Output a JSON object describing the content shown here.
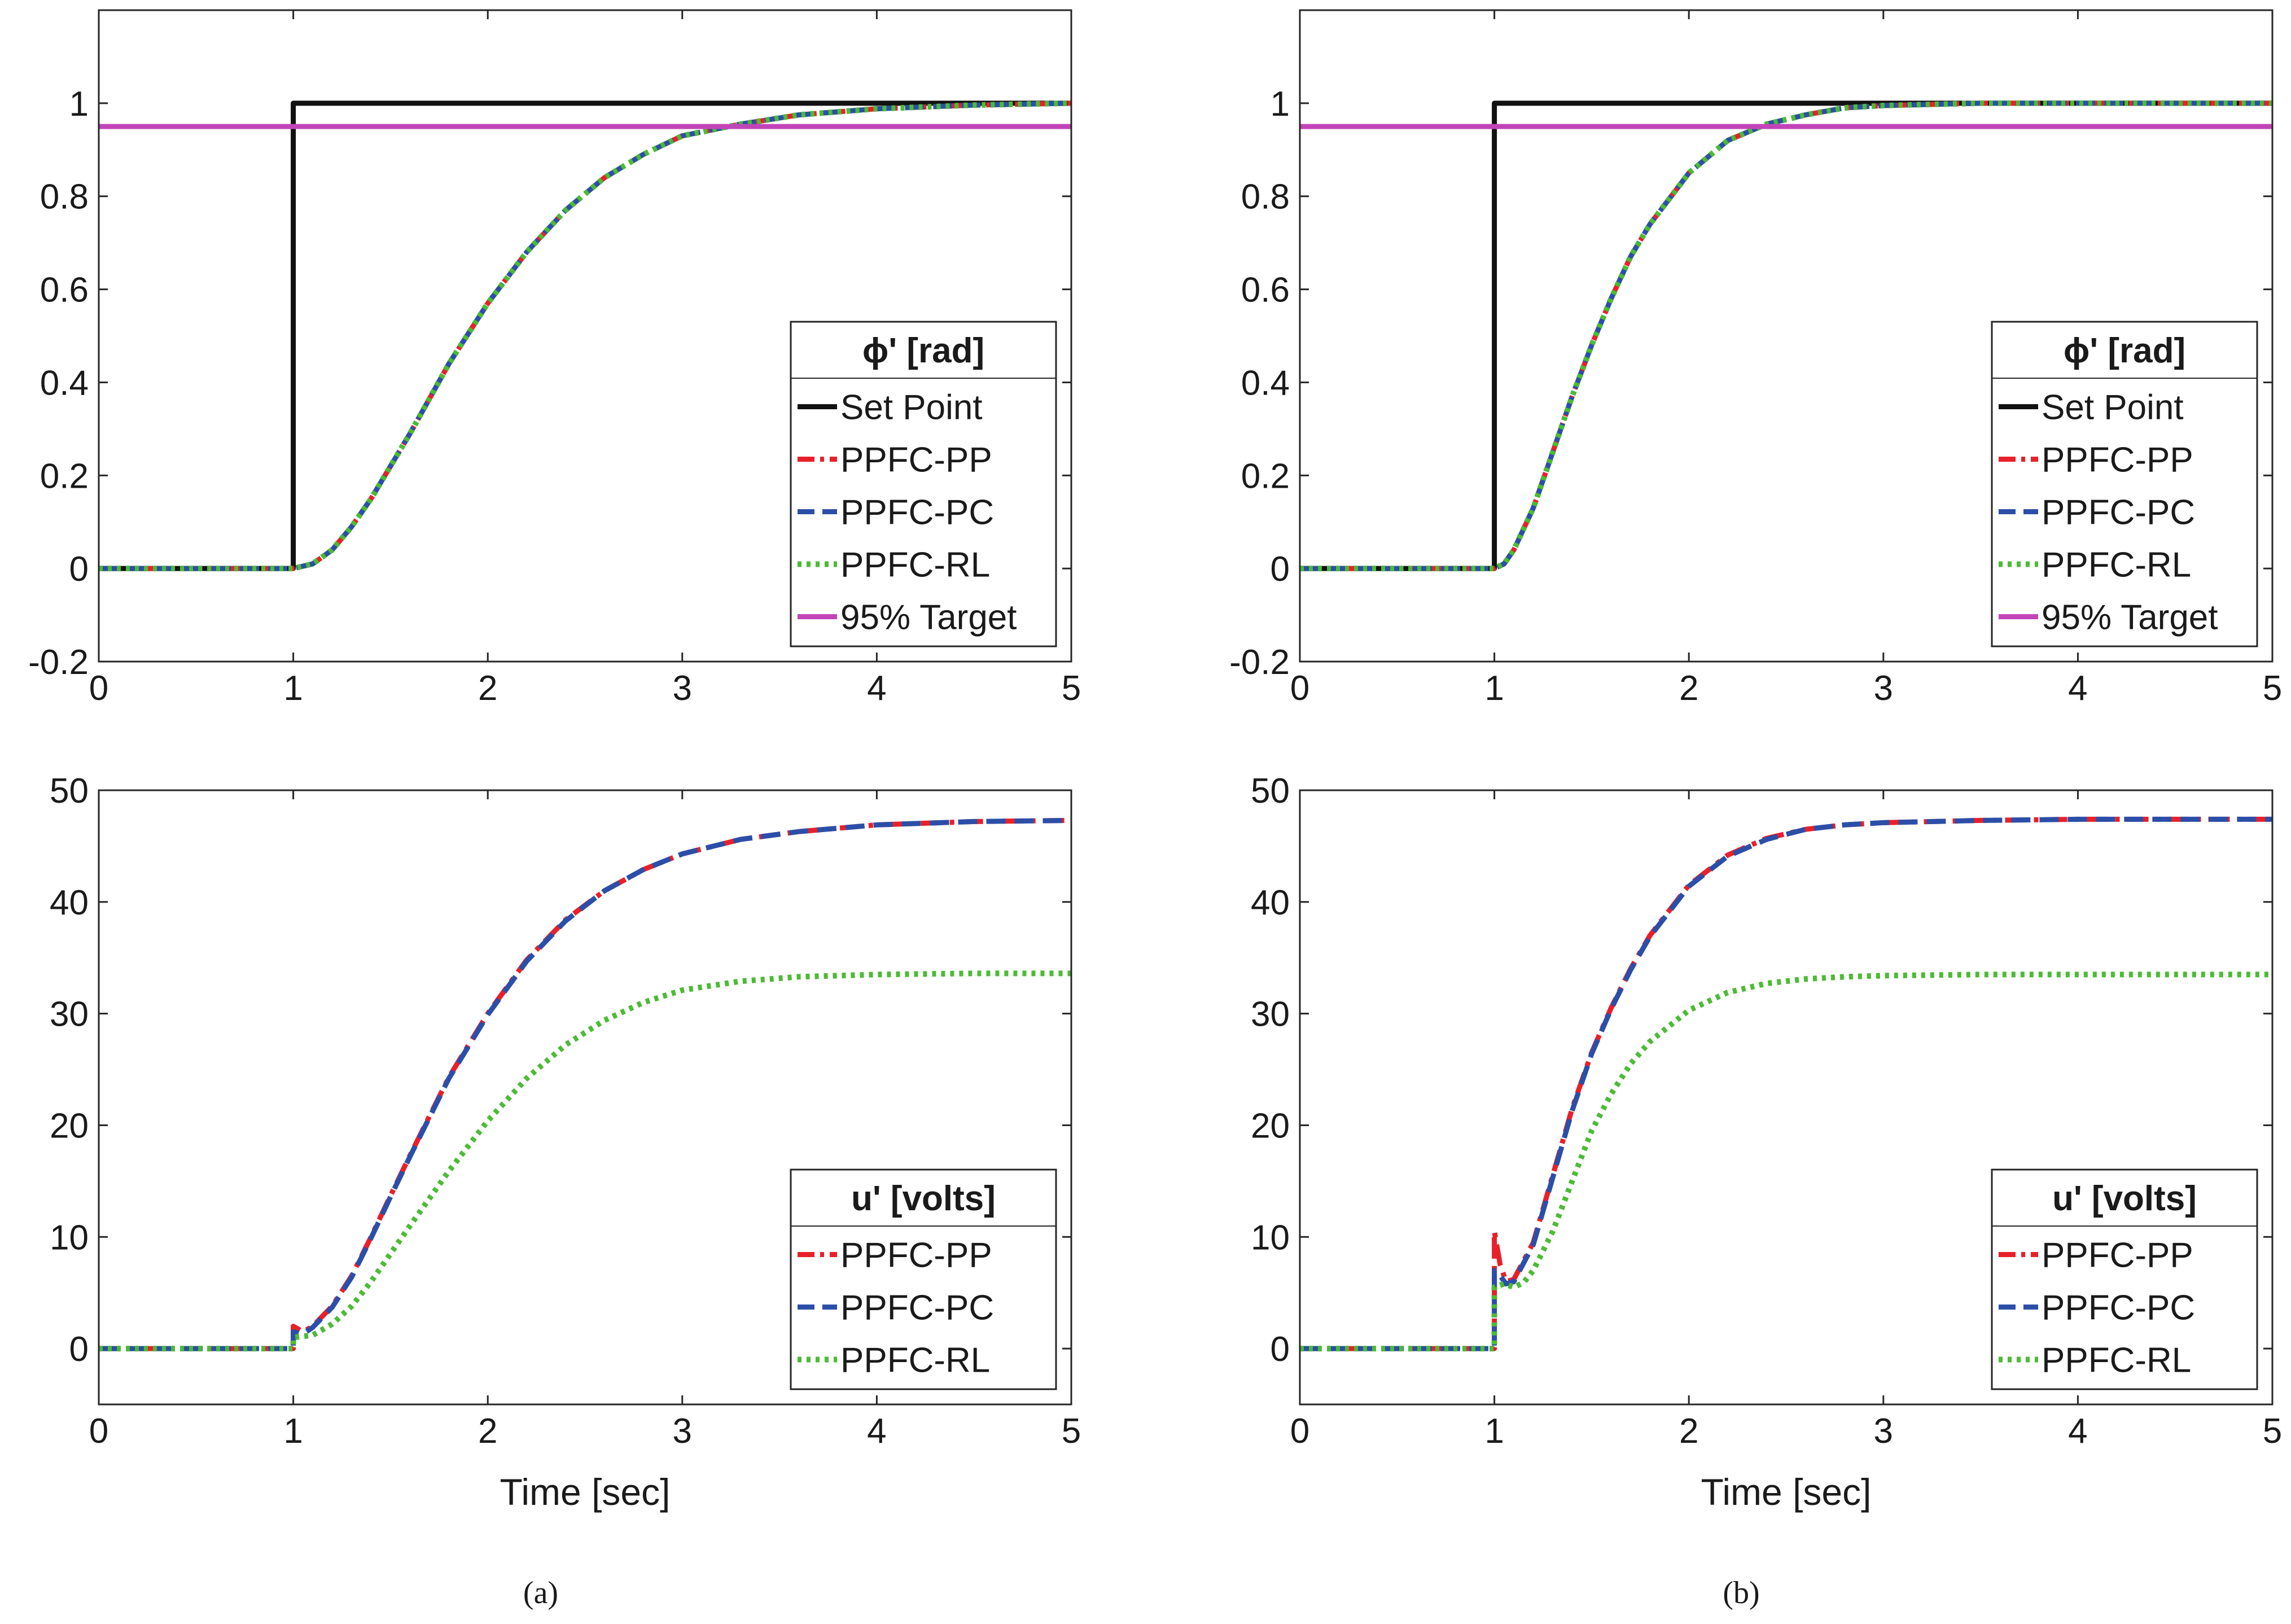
{
  "figure": {
    "captions": [
      "(a)",
      "(b)"
    ]
  },
  "chart_data": [
    {
      "type": "line",
      "panel": "a-top",
      "caption": "(a)",
      "xlabel": "",
      "ylabel": "",
      "xlim": [
        0,
        5
      ],
      "ylim": [
        -0.2,
        1.2
      ],
      "xticks": [
        0,
        1,
        2,
        3,
        4,
        5
      ],
      "yticks": [
        -0.2,
        0,
        0.2,
        0.4,
        0.6,
        0.8,
        1
      ],
      "grid": false,
      "legend": {
        "title": "ϕ' [rad]",
        "position": "bottom-right"
      },
      "series": [
        {
          "name": "Set Point",
          "color": "#111111",
          "style": "solid",
          "x": [
            0,
            1,
            1,
            5
          ],
          "y": [
            0,
            0,
            1,
            1
          ]
        },
        {
          "name": "PPFC-PP",
          "color": "#e8202a",
          "style": "dashdot",
          "x": [
            0,
            1,
            1.1,
            1.2,
            1.3,
            1.4,
            1.5,
            1.6,
            1.8,
            2.0,
            2.2,
            2.4,
            2.6,
            2.8,
            3.0,
            3.3,
            3.6,
            4.0,
            4.5,
            5.0
          ],
          "y": [
            0,
            0,
            0.01,
            0.04,
            0.09,
            0.15,
            0.22,
            0.29,
            0.44,
            0.57,
            0.68,
            0.77,
            0.84,
            0.89,
            0.93,
            0.955,
            0.975,
            0.988,
            0.996,
            1.0
          ]
        },
        {
          "name": "PPFC-PC",
          "color": "#2b4fa8",
          "style": "dashed",
          "x": [
            0,
            1,
            1.1,
            1.2,
            1.3,
            1.4,
            1.5,
            1.6,
            1.8,
            2.0,
            2.2,
            2.4,
            2.6,
            2.8,
            3.0,
            3.3,
            3.6,
            4.0,
            4.5,
            5.0
          ],
          "y": [
            0,
            0,
            0.01,
            0.04,
            0.09,
            0.15,
            0.22,
            0.29,
            0.44,
            0.57,
            0.68,
            0.77,
            0.84,
            0.89,
            0.93,
            0.955,
            0.975,
            0.988,
            0.996,
            1.0
          ]
        },
        {
          "name": "PPFC-RL",
          "color": "#4cbb35",
          "style": "dotted",
          "x": [
            0,
            1,
            1.1,
            1.2,
            1.3,
            1.4,
            1.5,
            1.6,
            1.8,
            2.0,
            2.2,
            2.4,
            2.6,
            2.8,
            3.0,
            3.3,
            3.6,
            4.0,
            4.5,
            5.0
          ],
          "y": [
            0,
            0,
            0.01,
            0.04,
            0.09,
            0.15,
            0.22,
            0.29,
            0.44,
            0.57,
            0.68,
            0.77,
            0.84,
            0.89,
            0.93,
            0.955,
            0.975,
            0.988,
            0.996,
            1.0
          ]
        },
        {
          "name": "95% Target",
          "color": "#c245b8",
          "style": "solid",
          "x": [
            0,
            5
          ],
          "y": [
            0.95,
            0.95
          ]
        }
      ]
    },
    {
      "type": "line",
      "panel": "b-top",
      "caption": "(b)",
      "xlabel": "",
      "ylabel": "",
      "xlim": [
        0,
        5
      ],
      "ylim": [
        -0.2,
        1.2
      ],
      "xticks": [
        0,
        1,
        2,
        3,
        4,
        5
      ],
      "yticks": [
        -0.2,
        0,
        0.2,
        0.4,
        0.6,
        0.8,
        1
      ],
      "grid": false,
      "legend": {
        "title": "ϕ' [rad]",
        "position": "bottom-right"
      },
      "series": [
        {
          "name": "Set Point",
          "color": "#111111",
          "style": "solid",
          "x": [
            0,
            1,
            1,
            5
          ],
          "y": [
            0,
            0,
            1,
            1
          ]
        },
        {
          "name": "PPFC-PP",
          "color": "#e8202a",
          "style": "dashdot",
          "x": [
            0,
            1,
            1.05,
            1.1,
            1.2,
            1.3,
            1.4,
            1.5,
            1.6,
            1.7,
            1.8,
            2.0,
            2.2,
            2.4,
            2.6,
            2.8,
            3.0,
            3.5,
            4.0,
            5.0
          ],
          "y": [
            0,
            0,
            0.01,
            0.04,
            0.13,
            0.25,
            0.37,
            0.48,
            0.58,
            0.67,
            0.74,
            0.85,
            0.92,
            0.955,
            0.975,
            0.99,
            0.995,
            1.0,
            1.0,
            1.0
          ]
        },
        {
          "name": "PPFC-PC",
          "color": "#2b4fa8",
          "style": "dashed",
          "x": [
            0,
            1,
            1.05,
            1.1,
            1.2,
            1.3,
            1.4,
            1.5,
            1.6,
            1.7,
            1.8,
            2.0,
            2.2,
            2.4,
            2.6,
            2.8,
            3.0,
            3.5,
            4.0,
            5.0
          ],
          "y": [
            0,
            0,
            0.01,
            0.04,
            0.13,
            0.25,
            0.37,
            0.48,
            0.58,
            0.67,
            0.74,
            0.85,
            0.92,
            0.955,
            0.975,
            0.99,
            0.995,
            1.0,
            1.0,
            1.0
          ]
        },
        {
          "name": "PPFC-RL",
          "color": "#4cbb35",
          "style": "dotted",
          "x": [
            0,
            1,
            1.05,
            1.1,
            1.2,
            1.3,
            1.4,
            1.5,
            1.6,
            1.7,
            1.8,
            2.0,
            2.2,
            2.4,
            2.6,
            2.8,
            3.0,
            3.5,
            4.0,
            5.0
          ],
          "y": [
            0,
            0,
            0.01,
            0.04,
            0.13,
            0.25,
            0.37,
            0.48,
            0.58,
            0.67,
            0.74,
            0.85,
            0.92,
            0.955,
            0.975,
            0.99,
            0.995,
            1.0,
            1.0,
            1.0
          ]
        },
        {
          "name": "95% Target",
          "color": "#c245b8",
          "style": "solid",
          "x": [
            0,
            5
          ],
          "y": [
            0.95,
            0.95
          ]
        }
      ]
    },
    {
      "type": "line",
      "panel": "a-bottom",
      "caption": "(a)",
      "xlabel": "Time [sec]",
      "ylabel": "",
      "xlim": [
        0,
        5
      ],
      "ylim": [
        -5,
        50
      ],
      "xticks": [
        0,
        1,
        2,
        3,
        4,
        5
      ],
      "yticks": [
        0,
        10,
        20,
        30,
        40,
        50
      ],
      "grid": false,
      "legend": {
        "title": "u' [volts]",
        "position": "bottom-right"
      },
      "series": [
        {
          "name": "PPFC-PP",
          "color": "#e8202a",
          "style": "dashdot",
          "x": [
            0,
            1,
            1,
            1.05,
            1.1,
            1.2,
            1.3,
            1.4,
            1.5,
            1.6,
            1.8,
            2.0,
            2.2,
            2.4,
            2.6,
            2.8,
            3.0,
            3.3,
            3.6,
            4.0,
            4.5,
            5.0
          ],
          "y": [
            0,
            0,
            2,
            1.5,
            2.0,
            3.8,
            6.5,
            10,
            13.7,
            17.3,
            24.3,
            30.0,
            34.8,
            38.4,
            41.0,
            42.9,
            44.3,
            45.6,
            46.3,
            46.9,
            47.2,
            47.3
          ]
        },
        {
          "name": "PPFC-PC",
          "color": "#2b4fa8",
          "style": "dashed",
          "x": [
            0,
            1,
            1,
            1.05,
            1.1,
            1.2,
            1.3,
            1.4,
            1.5,
            1.6,
            1.8,
            2.0,
            2.2,
            2.4,
            2.6,
            2.8,
            3.0,
            3.3,
            3.6,
            4.0,
            4.5,
            5.0
          ],
          "y": [
            0,
            0,
            1.5,
            1.3,
            1.9,
            3.7,
            6.4,
            9.9,
            13.6,
            17.2,
            24.2,
            29.9,
            34.7,
            38.3,
            41.0,
            42.9,
            44.3,
            45.6,
            46.3,
            46.9,
            47.2,
            47.3
          ]
        },
        {
          "name": "PPFC-RL",
          "color": "#4cbb35",
          "style": "dotted",
          "x": [
            0,
            1,
            1,
            1.1,
            1.2,
            1.3,
            1.4,
            1.5,
            1.6,
            1.8,
            2.0,
            2.2,
            2.4,
            2.6,
            2.8,
            3.0,
            3.3,
            3.6,
            4.0,
            4.5,
            5.0
          ],
          "y": [
            0,
            0,
            1.0,
            1.2,
            2.2,
            3.8,
            6.0,
            8.5,
            11.0,
            15.9,
            20.4,
            24.2,
            27.2,
            29.4,
            31.0,
            32.1,
            32.9,
            33.3,
            33.5,
            33.6,
            33.6
          ]
        }
      ]
    },
    {
      "type": "line",
      "panel": "b-bottom",
      "caption": "(b)",
      "xlabel": "Time [sec]",
      "ylabel": "",
      "xlim": [
        0,
        5
      ],
      "ylim": [
        -5,
        50
      ],
      "xticks": [
        0,
        1,
        2,
        3,
        4,
        5
      ],
      "yticks": [
        0,
        10,
        20,
        30,
        40,
        50
      ],
      "grid": false,
      "legend": {
        "title": "u' [volts]",
        "position": "bottom-right"
      },
      "series": [
        {
          "name": "PPFC-PP",
          "color": "#e8202a",
          "style": "dashdot",
          "x": [
            0,
            1,
            1,
            1.03,
            1.06,
            1.1,
            1.2,
            1.3,
            1.4,
            1.5,
            1.6,
            1.7,
            1.8,
            2.0,
            2.2,
            2.4,
            2.6,
            2.8,
            3.0,
            3.5,
            4.0,
            5.0
          ],
          "y": [
            0,
            0,
            10.5,
            7.5,
            6.0,
            6.2,
            9.5,
            15.5,
            21.5,
            26.5,
            30.5,
            34.0,
            37.0,
            41.5,
            44.2,
            45.7,
            46.5,
            46.9,
            47.1,
            47.3,
            47.4,
            47.4
          ]
        },
        {
          "name": "PPFC-PC",
          "color": "#2b4fa8",
          "style": "dashed",
          "x": [
            0,
            1,
            1,
            1.03,
            1.06,
            1.1,
            1.2,
            1.3,
            1.4,
            1.5,
            1.6,
            1.7,
            1.8,
            2.0,
            2.2,
            2.4,
            2.6,
            2.8,
            3.0,
            3.5,
            4.0,
            5.0
          ],
          "y": [
            0,
            0,
            7.0,
            6.5,
            5.8,
            6.0,
            9.3,
            15.3,
            21.3,
            26.4,
            30.4,
            33.9,
            36.9,
            41.4,
            44.1,
            45.6,
            46.5,
            46.9,
            47.1,
            47.3,
            47.4,
            47.4
          ]
        },
        {
          "name": "PPFC-RL",
          "color": "#4cbb35",
          "style": "dotted",
          "x": [
            0,
            1,
            1,
            1.05,
            1.1,
            1.15,
            1.2,
            1.3,
            1.4,
            1.5,
            1.6,
            1.7,
            1.8,
            2.0,
            2.2,
            2.4,
            2.6,
            2.8,
            3.0,
            3.5,
            4.0,
            5.0
          ],
          "y": [
            0,
            0,
            5.5,
            5.8,
            5.5,
            5.9,
            7.0,
            10.5,
            15.0,
            19.5,
            22.8,
            25.5,
            27.5,
            30.3,
            31.9,
            32.7,
            33.1,
            33.3,
            33.4,
            33.5,
            33.5,
            33.5
          ]
        }
      ]
    }
  ]
}
